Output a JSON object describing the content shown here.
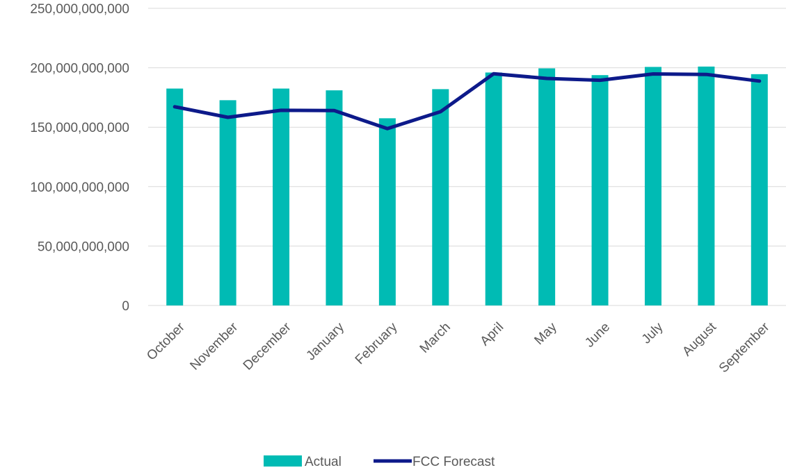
{
  "chart_data": {
    "type": "bar",
    "categories": [
      "October",
      "November",
      "December",
      "January",
      "February",
      "March",
      "April",
      "May",
      "June",
      "July",
      "August",
      "September"
    ],
    "series": [
      {
        "name": "Actual",
        "type": "bar",
        "color": "#00bbb4",
        "values": [
          182500000000,
          172700000000,
          182500000000,
          181000000000,
          157500000000,
          182000000000,
          196000000000,
          199500000000,
          193800000000,
          200700000000,
          201000000000,
          194600000000
        ]
      },
      {
        "name": "FCC Forecast",
        "type": "line",
        "color": "#0d1a8a",
        "values": [
          167200000000,
          158300000000,
          164200000000,
          164000000000,
          148800000000,
          163000000000,
          195000000000,
          191000000000,
          189500000000,
          194800000000,
          194400000000,
          188800000000
        ]
      }
    ],
    "y_ticks": [
      "0",
      "50,000,000,000",
      "100,000,000,000",
      "150,000,000,000",
      "200,000,000,000",
      "250,000,000,000"
    ],
    "ylim": [
      0,
      250000000000
    ],
    "grid": true,
    "legend_position": "bottom",
    "title": "",
    "xlabel": "",
    "ylabel": ""
  }
}
